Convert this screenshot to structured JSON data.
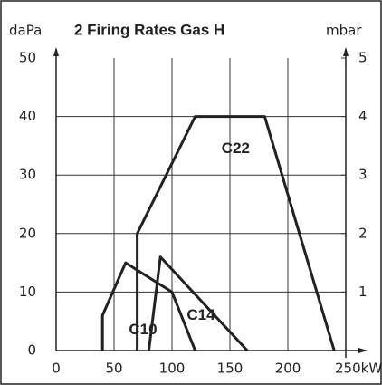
{
  "chart_data": {
    "type": "line",
    "title": "2 Firing Rates Gas H",
    "ylabel": "daPa",
    "y2label": "mbar",
    "xlim": [
      0,
      250
    ],
    "xticks": [
      0,
      50,
      100,
      150,
      200,
      {
        "value": 250,
        "label": "250kW"
      }
    ],
    "ylim": [
      0,
      50
    ],
    "yticks": [
      0,
      10,
      20,
      30,
      40,
      50
    ],
    "y2lim": [
      0,
      5
    ],
    "y2ticks": [
      1,
      2,
      3,
      4,
      5
    ],
    "grid": true,
    "series": [
      {
        "name": "C22",
        "color": "#222222",
        "x": [
          70,
          70,
          120,
          180,
          240
        ],
        "values": [
          0,
          20,
          40,
          40,
          0
        ]
      },
      {
        "name": "C14",
        "color": "#222222",
        "x": [
          80,
          90,
          165
        ],
        "values": [
          0,
          16,
          0
        ]
      },
      {
        "name": "C10",
        "color": "#222222",
        "x": [
          40,
          40,
          60,
          100,
          120
        ],
        "values": [
          0,
          6,
          15,
          10,
          0
        ]
      }
    ]
  }
}
